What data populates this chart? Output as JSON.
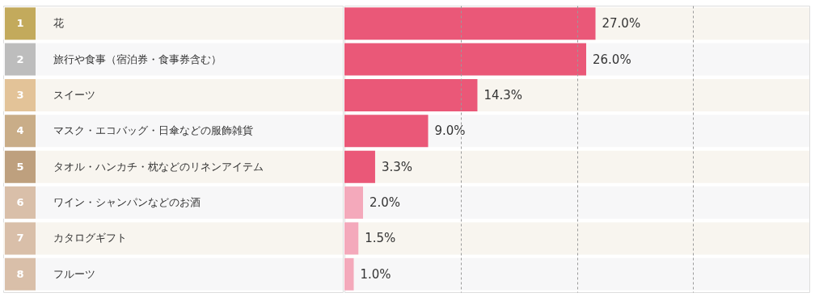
{
  "chart_data": {
    "type": "bar",
    "orientation": "horizontal",
    "categories": [
      "花",
      "旅行や食事（宿泊券・食事券含む）",
      "スイーツ",
      "マスク・エコバッグ・日傘などの服飾雑貨",
      "タオル・ハンカチ・枕などのリネンアイテム",
      "ワイン・シャンパンなどのお酒",
      "カタログギフト",
      "フルーツ"
    ],
    "y2_categories": [
      "1",
      "2",
      "3",
      "4",
      "5",
      "6",
      "7",
      "8"
    ],
    "values": [
      27.0,
      26.0,
      14.3,
      9.0,
      3.3,
      2.0,
      1.5,
      1.0
    ],
    "value_labels": [
      "27.0%",
      "26.0%",
      "14.3%",
      "9.0%",
      "3.3%",
      "2.0%",
      "1.5%",
      "1.0%"
    ],
    "colors": [
      "#ea5878",
      "#ea5878",
      "#ea5878",
      "#ea5878",
      "#ea5878",
      "#f4a9bb",
      "#f4a9bb",
      "#f4a9bb"
    ],
    "xlim": [
      0,
      50
    ],
    "xticks": [
      {
        "value": 12.5,
        "label": null
      },
      {
        "value": 25,
        "label": null
      },
      {
        "value": 37.5,
        "label": null
      }
    ],
    "grid": "x"
  }
}
